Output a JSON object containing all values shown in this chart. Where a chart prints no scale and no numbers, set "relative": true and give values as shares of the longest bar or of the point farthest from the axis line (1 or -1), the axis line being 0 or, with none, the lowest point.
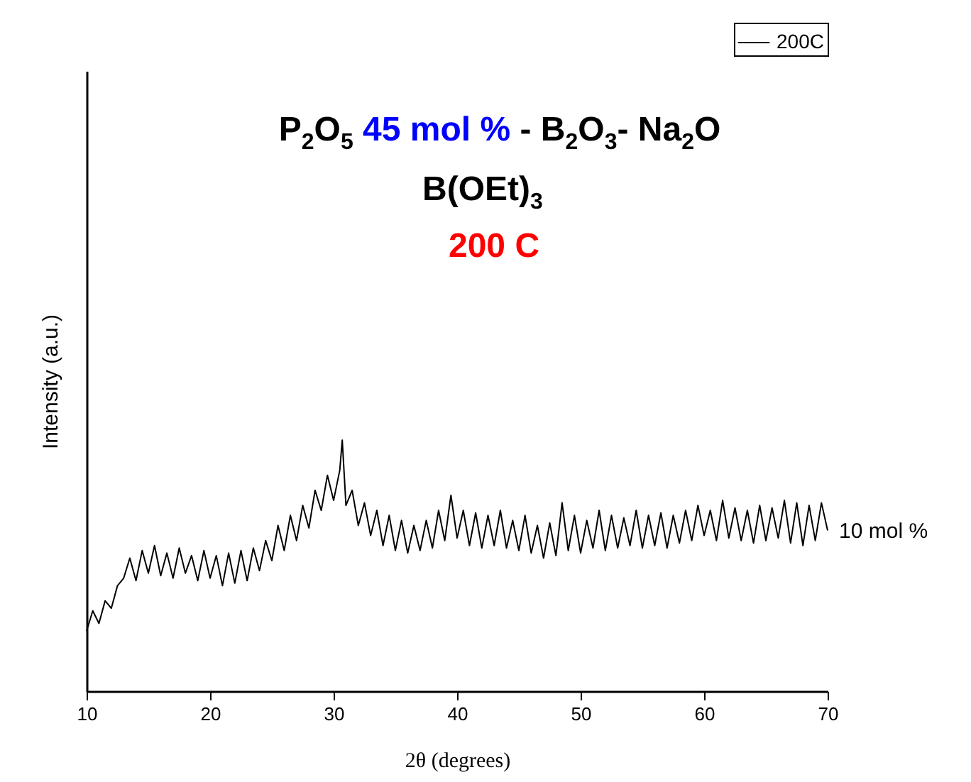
{
  "chart_data": {
    "type": "line",
    "relative": true,
    "xlabel": "2θ (degrees)",
    "ylabel": "Intensity (a.u.)",
    "xlim": [
      10,
      70
    ],
    "xticks": [
      10,
      20,
      30,
      40,
      50,
      60,
      70
    ],
    "grid": false,
    "legend": "top right",
    "marker": "none",
    "line_style": "solid",
    "annotations": [
      "P$_{2}$O$_{5}$",
      "45 mol %",
      "- B$_{2}$O$_{3}$- Na$_{2}$O",
      "B(OEt)$_{3}$",
      "200 C",
      {
        "text": "10  mol %",
        "x": 70,
        "y": 0.64
      }
    ],
    "x": [
      10,
      10.5,
      11,
      11.5,
      12,
      12.5,
      13,
      13.5,
      14,
      14.5,
      15,
      15.5,
      16,
      16.5,
      17,
      17.5,
      18,
      18.5,
      19,
      19.5,
      20,
      20.5,
      21,
      21.5,
      22,
      22.5,
      23,
      23.5,
      24,
      24.5,
      25,
      25.5,
      26,
      26.5,
      27,
      27.5,
      28,
      28.5,
      29,
      29.5,
      30,
      30.5,
      30.7,
      31,
      31.5,
      32,
      32.5,
      33,
      33.5,
      34,
      34.5,
      35,
      35.5,
      36,
      36.5,
      37,
      37.5,
      38,
      38.5,
      39,
      39.5,
      40,
      40.5,
      41,
      41.5,
      42,
      42.5,
      43,
      43.5,
      44,
      44.5,
      45,
      45.5,
      46,
      46.5,
      47,
      47.5,
      48,
      48.5,
      49,
      49.5,
      50,
      50.5,
      51,
      51.5,
      52,
      52.5,
      53,
      53.5,
      54,
      54.5,
      55,
      55.5,
      56,
      56.5,
      57,
      57.5,
      58,
      58.5,
      59,
      59.5,
      60,
      60.5,
      61,
      61.5,
      62,
      62.5,
      63,
      63.5,
      64,
      64.5,
      65,
      65.5,
      66,
      66.5,
      67,
      67.5,
      68,
      68.5,
      69,
      69.5,
      70
    ],
    "series": [
      {
        "name": "200C",
        "color": "#000000",
        "values": [
          0.24,
          0.32,
          0.27,
          0.36,
          0.33,
          0.42,
          0.45,
          0.53,
          0.44,
          0.56,
          0.47,
          0.58,
          0.46,
          0.55,
          0.45,
          0.57,
          0.47,
          0.54,
          0.44,
          0.56,
          0.45,
          0.54,
          0.42,
          0.55,
          0.43,
          0.56,
          0.44,
          0.57,
          0.48,
          0.6,
          0.52,
          0.66,
          0.56,
          0.7,
          0.6,
          0.74,
          0.65,
          0.8,
          0.72,
          0.86,
          0.76,
          0.88,
          1.0,
          0.74,
          0.8,
          0.66,
          0.75,
          0.62,
          0.72,
          0.58,
          0.7,
          0.56,
          0.68,
          0.55,
          0.66,
          0.56,
          0.68,
          0.57,
          0.72,
          0.6,
          0.78,
          0.61,
          0.72,
          0.58,
          0.71,
          0.57,
          0.7,
          0.58,
          0.72,
          0.57,
          0.68,
          0.56,
          0.7,
          0.55,
          0.66,
          0.53,
          0.67,
          0.54,
          0.75,
          0.56,
          0.7,
          0.55,
          0.68,
          0.57,
          0.72,
          0.56,
          0.7,
          0.57,
          0.69,
          0.58,
          0.72,
          0.57,
          0.7,
          0.58,
          0.71,
          0.57,
          0.7,
          0.59,
          0.72,
          0.6,
          0.74,
          0.62,
          0.72,
          0.6,
          0.76,
          0.61,
          0.73,
          0.6,
          0.72,
          0.59,
          0.74,
          0.6,
          0.73,
          0.61,
          0.76,
          0.59,
          0.75,
          0.58,
          0.74,
          0.6,
          0.75,
          0.64
        ]
      }
    ]
  }
}
